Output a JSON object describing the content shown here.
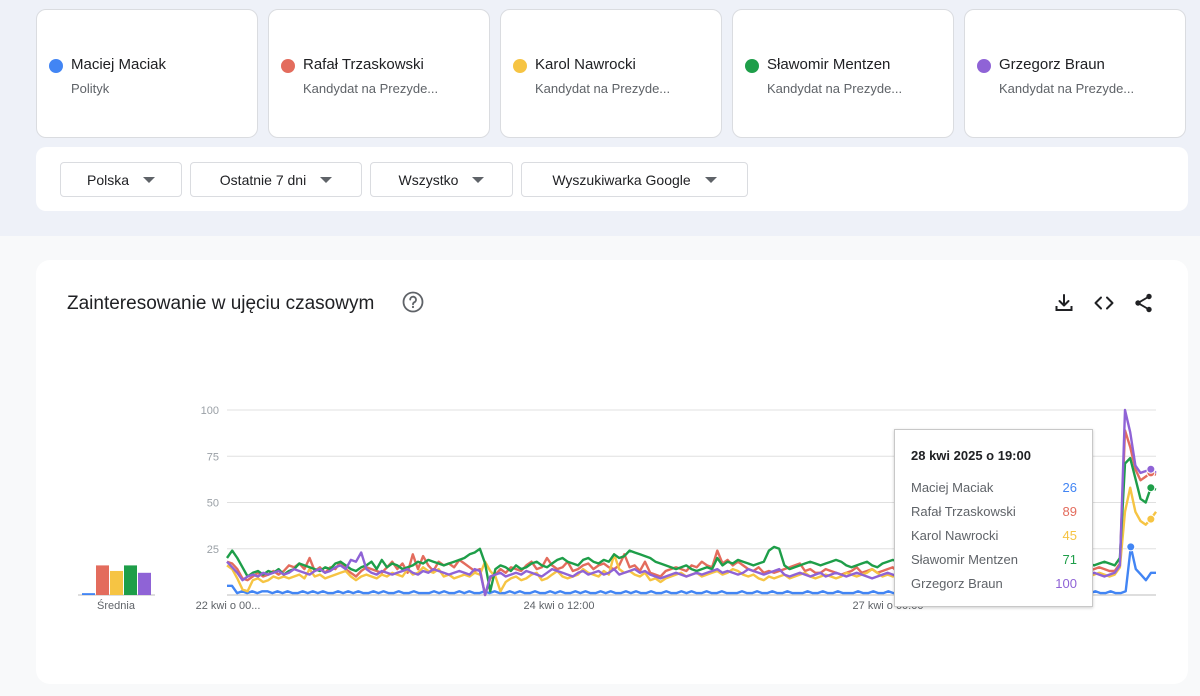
{
  "terms": [
    {
      "name": "Maciej Maciak",
      "sub": "Polityk",
      "color": "#4285f4"
    },
    {
      "name": "Rafał Trzaskowski",
      "sub": "Kandydat na Prezyde...",
      "color": "#e36c5d"
    },
    {
      "name": "Karol Nawrocki",
      "sub": "Kandydat na Prezyde...",
      "color": "#f6c443"
    },
    {
      "name": "Sławomir Mentzen",
      "sub": "Kandydat na Prezyde...",
      "color": "#1e9e49"
    },
    {
      "name": "Grzegorz Braun",
      "sub": "Kandydat na Prezyde...",
      "color": "#8f63d6"
    }
  ],
  "filters": {
    "region": "Polska",
    "time": "Ostatnie 7 dni",
    "category": "Wszystko",
    "property": "Wyszukiwarka Google"
  },
  "section": {
    "title": "Zainteresowanie w ujęciu czasowym",
    "help_icon": "help-circle-icon",
    "download_icon": "download-icon",
    "embed_icon": "code-icon",
    "share_icon": "share-icon"
  },
  "chart_data": {
    "type": "line",
    "ylim": [
      0,
      100
    ],
    "yticks": [
      "100",
      "75",
      "50",
      "25"
    ],
    "x_ticks": [
      "22 kwi o 00...",
      "24 kwi o 12:00",
      "27 kwi o 00:00"
    ],
    "grid": true,
    "average_label": "Średnia",
    "averages": [
      1,
      16,
      13,
      16,
      12
    ],
    "series": [
      {
        "name": "Maciej Maciak",
        "color": "#4285f4",
        "values": [
          5,
          5,
          1,
          2,
          1,
          2,
          1,
          2,
          2,
          1,
          2,
          1,
          2,
          1,
          1,
          2,
          1,
          2,
          1,
          2,
          1,
          1,
          2,
          1,
          2,
          1,
          2,
          1,
          1,
          2,
          1,
          2,
          1,
          1,
          2,
          1,
          1,
          2,
          1,
          1,
          1,
          2,
          1,
          2,
          1,
          1,
          2,
          1,
          2,
          1,
          1,
          2,
          1,
          2,
          1,
          1,
          2,
          1,
          2,
          1,
          1,
          2,
          1,
          1,
          2,
          1,
          2,
          1,
          1,
          2,
          1,
          2,
          1,
          1,
          2,
          1,
          2,
          1,
          1,
          2,
          1,
          2,
          1,
          1,
          2,
          1,
          1,
          2,
          1,
          1,
          2,
          1,
          2,
          1,
          1,
          2,
          1,
          1,
          2,
          1,
          1,
          1,
          2,
          1,
          1,
          2,
          1,
          1,
          2,
          1,
          1,
          2,
          1,
          1,
          1,
          2,
          1,
          1,
          2,
          1,
          1,
          2,
          1,
          1,
          1,
          2,
          1,
          1,
          2,
          1,
          1,
          2,
          1,
          1,
          2,
          1,
          1,
          2,
          1,
          1,
          1,
          2,
          1,
          1,
          2,
          1,
          1,
          2,
          1,
          1,
          2,
          1,
          1,
          2,
          1,
          1,
          2,
          1,
          1,
          2,
          1,
          1,
          2,
          1,
          1,
          2,
          1,
          1,
          3,
          2,
          1,
          1,
          2,
          1,
          1,
          2,
          1,
          1,
          2,
          26,
          14,
          11,
          8,
          12,
          12
        ]
      },
      {
        "name": "Rafał Trzaskowski",
        "color": "#e36c5d",
        "values": [
          18,
          17,
          14,
          9,
          8,
          10,
          12,
          10,
          11,
          13,
          11,
          13,
          16,
          15,
          17,
          14,
          20,
          13,
          15,
          12,
          15,
          14,
          18,
          14,
          12,
          10,
          13,
          15,
          14,
          13,
          12,
          15,
          18,
          14,
          17,
          12,
          22,
          14,
          21,
          16,
          13,
          18,
          16,
          17,
          15,
          19,
          17,
          15,
          13,
          14,
          0,
          9,
          11,
          14,
          12,
          15,
          14,
          13,
          16,
          18,
          14,
          15,
          20,
          16,
          14,
          15,
          18,
          13,
          14,
          16,
          17,
          14,
          16,
          17,
          15,
          14,
          16,
          22,
          15,
          16,
          13,
          18,
          12,
          11,
          10,
          13,
          14,
          15,
          14,
          13,
          16,
          15,
          18,
          16,
          15,
          24,
          17,
          19,
          16,
          18,
          16,
          14,
          13,
          15,
          12,
          13,
          12,
          13,
          14,
          15,
          16,
          17,
          13,
          14,
          12,
          12,
          14,
          13,
          12,
          11,
          12,
          13,
          15,
          12,
          13,
          14,
          12,
          13,
          14,
          15,
          12,
          14,
          16,
          14,
          12,
          13,
          15,
          14,
          13,
          12,
          11,
          12,
          13,
          12,
          13,
          12,
          14,
          13,
          12,
          11,
          13,
          12,
          11,
          12,
          13,
          13,
          12,
          14,
          12,
          13,
          12,
          14,
          13,
          12,
          12,
          11,
          12,
          13,
          14,
          15,
          14,
          13,
          13,
          17,
          89,
          80,
          68,
          62,
          64,
          66,
          65
        ]
      },
      {
        "name": "Karol Nawrocki",
        "color": "#f6c443",
        "values": [
          16,
          14,
          9,
          3,
          2,
          8,
          9,
          7,
          8,
          10,
          9,
          10,
          9,
          10,
          11,
          9,
          14,
          10,
          11,
          9,
          10,
          11,
          12,
          13,
          10,
          8,
          10,
          11,
          10,
          9,
          11,
          10,
          12,
          11,
          10,
          14,
          11,
          12,
          15,
          13,
          12,
          14,
          10,
          11,
          9,
          10,
          11,
          10,
          12,
          11,
          18,
          13,
          10,
          2,
          7,
          9,
          10,
          8,
          9,
          11,
          12,
          8,
          9,
          11,
          13,
          10,
          9,
          10,
          11,
          14,
          12,
          11,
          10,
          13,
          11,
          22,
          14,
          12,
          13,
          11,
          10,
          12,
          8,
          9,
          7,
          9,
          10,
          11,
          12,
          10,
          11,
          12,
          10,
          11,
          12,
          13,
          11,
          12,
          14,
          13,
          11,
          10,
          11,
          9,
          8,
          10,
          9,
          10,
          11,
          9,
          10,
          11,
          12,
          10,
          9,
          10,
          11,
          10,
          9,
          10,
          12,
          11,
          10,
          11,
          12,
          14,
          12,
          10,
          11,
          10,
          11,
          12,
          13,
          11,
          10,
          11,
          12,
          11,
          10,
          11,
          10,
          11,
          10,
          11,
          10,
          12,
          11,
          10,
          9,
          10,
          11,
          10,
          9,
          10,
          11,
          10,
          9,
          10,
          11,
          12,
          10,
          11,
          10,
          11,
          10,
          9,
          11,
          10,
          11,
          12,
          11,
          10,
          11,
          15,
          45,
          58,
          45,
          40,
          38,
          41,
          45
        ]
      },
      {
        "name": "Sławomir Mentzen",
        "color": "#1e9e49",
        "values": [
          20,
          24,
          20,
          15,
          10,
          12,
          13,
          11,
          13,
          12,
          14,
          11,
          13,
          14,
          17,
          16,
          15,
          14,
          13,
          15,
          14,
          17,
          18,
          16,
          14,
          13,
          15,
          16,
          18,
          14,
          19,
          15,
          17,
          16,
          14,
          15,
          16,
          18,
          17,
          19,
          18,
          17,
          16,
          17,
          18,
          19,
          20,
          22,
          23,
          25,
          17,
          2,
          14,
          16,
          15,
          13,
          16,
          14,
          15,
          17,
          18,
          16,
          15,
          17,
          19,
          20,
          18,
          17,
          16,
          19,
          20,
          18,
          17,
          19,
          18,
          22,
          20,
          21,
          24,
          23,
          22,
          21,
          20,
          18,
          17,
          16,
          15,
          14,
          15,
          16,
          14,
          13,
          14,
          15,
          14,
          20,
          16,
          18,
          17,
          19,
          18,
          17,
          16,
          17,
          18,
          24,
          26,
          25,
          16,
          14,
          15,
          16,
          17,
          18,
          17,
          16,
          17,
          18,
          19,
          18,
          16,
          15,
          16,
          17,
          18,
          16,
          15,
          17,
          18,
          19,
          18,
          17,
          16,
          18,
          17,
          19,
          18,
          17,
          16,
          17,
          18,
          17,
          16,
          17,
          18,
          19,
          17,
          16,
          17,
          18,
          19,
          17,
          16,
          15,
          16,
          17,
          18,
          17,
          16,
          15,
          16,
          17,
          18,
          17,
          16,
          17,
          18,
          17,
          16,
          17,
          18,
          17,
          16,
          20,
          71,
          74,
          63,
          52,
          50,
          58,
          57
        ]
      },
      {
        "name": "Grzegorz Braun",
        "color": "#8f63d6",
        "values": [
          18,
          15,
          12,
          8,
          10,
          11,
          10,
          12,
          11,
          12,
          13,
          11,
          12,
          14,
          13,
          12,
          11,
          13,
          14,
          12,
          13,
          15,
          16,
          14,
          19,
          18,
          23,
          14,
          12,
          11,
          13,
          12,
          11,
          12,
          13,
          14,
          12,
          11,
          13,
          12,
          14,
          13,
          12,
          11,
          12,
          13,
          12,
          11,
          14,
          13,
          0,
          10,
          11,
          12,
          10,
          11,
          12,
          11,
          13,
          12,
          11,
          10,
          12,
          14,
          13,
          12,
          11,
          10,
          12,
          13,
          11,
          12,
          13,
          11,
          12,
          14,
          11,
          12,
          13,
          14,
          12,
          13,
          11,
          10,
          9,
          10,
          11,
          12,
          11,
          10,
          11,
          12,
          11,
          12,
          13,
          14,
          12,
          13,
          12,
          11,
          12,
          14,
          13,
          12,
          11,
          12,
          13,
          14,
          11,
          10,
          11,
          12,
          11,
          10,
          11,
          12,
          10,
          11,
          12,
          11,
          10,
          11,
          12,
          11,
          10,
          9,
          10,
          11,
          12,
          11,
          10,
          11,
          12,
          10,
          11,
          10,
          11,
          12,
          11,
          10,
          11,
          12,
          11,
          10,
          11,
          10,
          11,
          12,
          11,
          10,
          11,
          10,
          11,
          12,
          11,
          10,
          11,
          12,
          10,
          11,
          12,
          11,
          10,
          11,
          12,
          11,
          10,
          11,
          12,
          11,
          10,
          11,
          12,
          16,
          100,
          88,
          70,
          66,
          67,
          68,
          66
        ]
      }
    ]
  },
  "tooltip": {
    "date": "28 kwi 2025 o 19:00",
    "rows": [
      {
        "name": "Maciej Maciak",
        "value": "26",
        "color": "#4285f4"
      },
      {
        "name": "Rafał Trzaskowski",
        "value": "89",
        "color": "#e36c5d"
      },
      {
        "name": "Karol Nawrocki",
        "value": "45",
        "color": "#f6c443"
      },
      {
        "name": "Sławomir Mentzen",
        "value": "71",
        "color": "#1e9e49"
      },
      {
        "name": "Grzegorz Braun",
        "value": "100",
        "color": "#8f63d6"
      }
    ]
  }
}
